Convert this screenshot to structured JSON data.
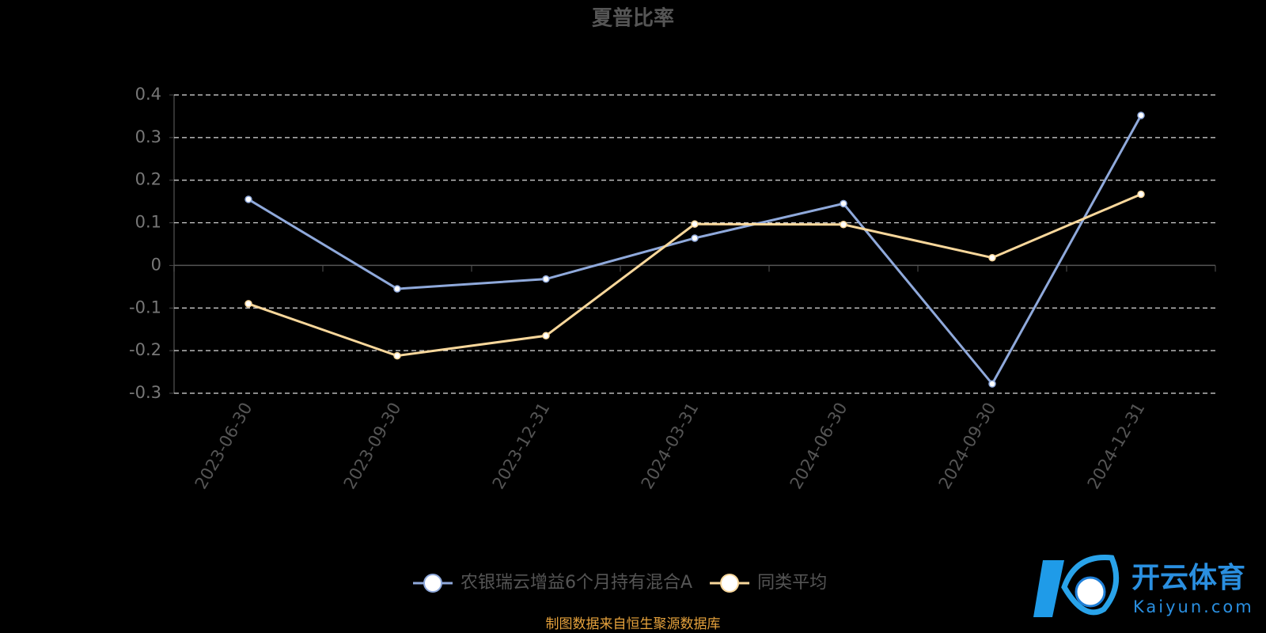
{
  "chart_data": {
    "type": "line",
    "title": "夏普比率",
    "categories": [
      "2023-06-30",
      "2023-09-30",
      "2023-12-31",
      "2024-03-31",
      "2024-06-30",
      "2024-09-30",
      "2024-12-31"
    ],
    "series": [
      {
        "name": "农银瑞云增益6个月持有混合A",
        "color": "#8fa9db",
        "values": [
          0.155,
          -0.055,
          -0.032,
          0.064,
          0.145,
          -0.278,
          0.352
        ]
      },
      {
        "name": "同类平均",
        "color": "#f8d79b",
        "values": [
          -0.09,
          -0.212,
          -0.165,
          0.097,
          0.096,
          0.018,
          0.167
        ]
      }
    ],
    "ylim": [
      -0.3,
      0.4
    ],
    "yticks": [
      -0.3,
      -0.2,
      -0.1,
      0,
      0.1,
      0.2,
      0.3,
      0.4
    ],
    "grid": true,
    "legend": "bottom",
    "source": "制图数据来自恒生聚源数据库"
  },
  "watermark": {
    "brand": "开云体育",
    "url": "Kaiyun.com"
  }
}
